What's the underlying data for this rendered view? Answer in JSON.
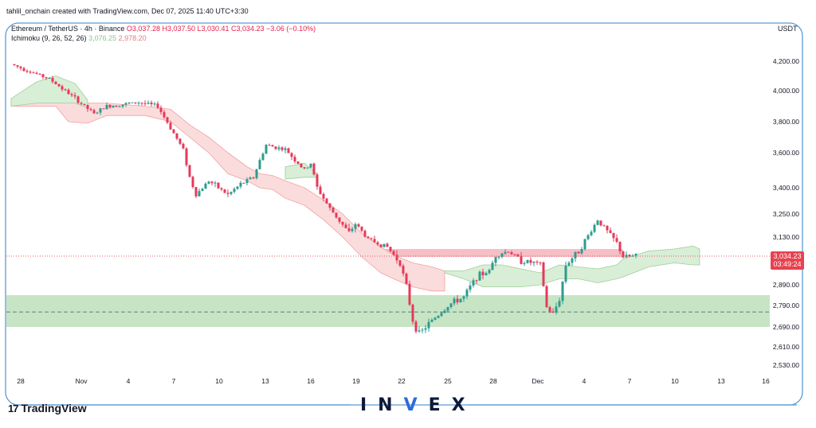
{
  "header": {
    "attribution": "tahlil_onchain created with TradingView.com, Dec 07, 2025 11:40 UTC+3:30"
  },
  "legend": {
    "symbol": "Ethereum / TetherUS · 4h · Binance",
    "ohlc": "O3,037.28 H3,037.50 L3,030.41 C3,034.23 −3.06 (−0.10%)",
    "indicator_name": "Ichimoku (9, 26, 52, 26)",
    "indicator_value_1": "3,076.25",
    "indicator_value_2": "2,978.20"
  },
  "currency_label": "USDT",
  "price_tag": {
    "price": "3,034.23",
    "countdown": "03:49:24"
  },
  "branding": {
    "tradingview": "TradingView",
    "tv_mark": "17",
    "invex_prefix": "IN",
    "invex_v": "V",
    "invex_suffix": "EX"
  },
  "colors": {
    "up": "#26a69a",
    "down": "#e0254b",
    "candle_up": "#2e9b8f",
    "candle_down": "#e43a5a",
    "cloud_green": "#d9eed6",
    "cloud_red": "#fbdcdc",
    "support_zone": "#b9dfb6",
    "resistance_zone": "#f3a9b3",
    "frame": "#5b9bd5",
    "price_tag": "#e8414f"
  },
  "chart_data": {
    "type": "candlestick",
    "timeframe": "4h",
    "y_axis_ticks": [
      "4,200.00",
      "4,000.00",
      "3,800.00",
      "3,600.00",
      "3,400.00",
      "3,250.00",
      "3,130.00",
      "2,890.00",
      "2,790.00",
      "2,690.00",
      "2,610.00",
      "2,530.00"
    ],
    "y_tick_values": [
      4200,
      4000,
      3800,
      3600,
      3400,
      3250,
      3130,
      2890,
      2790,
      2690,
      2610,
      2530
    ],
    "x_axis_ticks": [
      "28",
      "Nov",
      "4",
      "7",
      "10",
      "13",
      "16",
      "19",
      "22",
      "25",
      "28",
      "Dec",
      "4",
      "7",
      "10",
      "13",
      "16"
    ],
    "last_price": 3034.23,
    "zones": [
      {
        "type": "resistance",
        "low": 3030,
        "high": 3070
      },
      {
        "type": "support",
        "low": 2690,
        "high": 2840
      }
    ],
    "support_midline": 2760,
    "path": [
      [
        0,
        4180
      ],
      [
        6,
        4080
      ],
      [
        10,
        3950
      ],
      [
        13,
        3850
      ],
      [
        15,
        3900
      ],
      [
        20,
        3925
      ],
      [
        23,
        3900
      ],
      [
        25,
        3760
      ],
      [
        27,
        3620
      ],
      [
        28,
        3460
      ],
      [
        29,
        3360
      ],
      [
        31,
        3440
      ],
      [
        34,
        3360
      ],
      [
        36,
        3420
      ],
      [
        38,
        3460
      ],
      [
        40,
        3650
      ],
      [
        43,
        3620
      ],
      [
        46,
        3500
      ],
      [
        47,
        3540
      ],
      [
        48,
        3400
      ],
      [
        50,
        3280
      ],
      [
        53,
        3150
      ],
      [
        54,
        3200
      ],
      [
        56,
        3120
      ],
      [
        59,
        3080
      ],
      [
        61,
        3000
      ],
      [
        62,
        2880
      ],
      [
        63,
        2720
      ],
      [
        64,
        2660
      ],
      [
        66,
        2720
      ],
      [
        69,
        2800
      ],
      [
        71,
        2830
      ],
      [
        73,
        2930
      ],
      [
        75,
        2960
      ],
      [
        76,
        3040
      ],
      [
        78,
        3060
      ],
      [
        80,
        3010
      ],
      [
        82,
        3000
      ],
      [
        83,
        2990
      ],
      [
        84,
        2780
      ],
      [
        85,
        2750
      ],
      [
        86,
        2820
      ],
      [
        87,
        2990
      ],
      [
        89,
        3060
      ],
      [
        90,
        3110
      ],
      [
        92,
        3220
      ],
      [
        95,
        3100
      ],
      [
        96,
        3030
      ],
      [
        98,
        3034
      ]
    ],
    "cloud_red": [
      [
        0,
        3950,
        3900
      ],
      [
        7,
        3950,
        3900
      ],
      [
        9,
        3930,
        3800
      ],
      [
        12,
        3920,
        3790
      ],
      [
        15,
        3920,
        3840
      ],
      [
        18,
        3910,
        3840
      ],
      [
        21,
        3900,
        3840
      ],
      [
        25,
        3880,
        3800
      ],
      [
        28,
        3780,
        3700
      ],
      [
        31,
        3700,
        3600
      ],
      [
        34,
        3600,
        3480
      ],
      [
        37,
        3520,
        3440
      ],
      [
        39,
        3480,
        3400
      ],
      [
        41,
        3470,
        3390
      ],
      [
        43,
        3440,
        3340
      ],
      [
        46,
        3400,
        3300
      ],
      [
        49,
        3330,
        3220
      ],
      [
        52,
        3250,
        3130
      ],
      [
        55,
        3150,
        3030
      ],
      [
        58,
        3080,
        2950
      ],
      [
        60,
        3040,
        2920
      ],
      [
        63,
        3000,
        2880
      ],
      [
        66,
        2980,
        2860
      ],
      [
        68,
        2960,
        2860
      ]
    ],
    "cloud_green": [
      [
        0,
        3900,
        3950
      ],
      [
        4,
        3920,
        4060
      ],
      [
        7,
        3920,
        4100
      ],
      [
        10,
        3920,
        4050
      ],
      [
        12,
        3890,
        3940
      ],
      [
        43,
        3450,
        3520
      ],
      [
        46,
        3460,
        3540
      ],
      [
        48,
        3460,
        3480
      ],
      [
        68,
        2950,
        2960
      ],
      [
        71,
        2920,
        2960
      ],
      [
        74,
        2880,
        2990
      ],
      [
        77,
        2880,
        2990
      ],
      [
        80,
        2880,
        2970
      ],
      [
        83,
        2890,
        2950
      ],
      [
        86,
        2920,
        2990
      ],
      [
        89,
        2920,
        2980
      ],
      [
        92,
        2900,
        2970
      ],
      [
        95,
        2920,
        2990
      ],
      [
        96,
        2930,
        3020
      ],
      [
        100,
        2980,
        3060
      ],
      [
        104,
        3000,
        3070
      ],
      [
        107,
        2990,
        3085
      ],
      [
        108,
        2990,
        3070
      ]
    ]
  }
}
